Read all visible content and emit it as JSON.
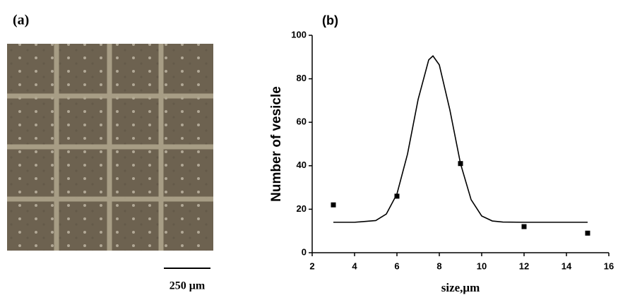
{
  "panel_a": {
    "label": "(a)",
    "scale_bar": "250 μm"
  },
  "chart_data": {
    "type": "scatter",
    "title": "(b)",
    "x_label": "size,μm",
    "y_label": "Number of vesicle",
    "xlim": [
      2,
      16
    ],
    "xticks": [
      2,
      4,
      6,
      8,
      10,
      12,
      14,
      16
    ],
    "ylim": [
      0,
      100
    ],
    "yticks": [
      0,
      20,
      40,
      60,
      80,
      100
    ],
    "series": [
      {
        "type": "scatter",
        "color": "#000000",
        "x": [
          3,
          6,
          9,
          12,
          15
        ],
        "values": [
          22,
          26,
          41,
          12,
          9
        ]
      },
      {
        "type": "line",
        "color": "#000000",
        "x": [
          3,
          4,
          5,
          5.5,
          6,
          6.5,
          7,
          7.5,
          7.7,
          8,
          8.5,
          9,
          9.5,
          10,
          10.5,
          11,
          12,
          13,
          14,
          15
        ],
        "values": [
          14,
          14,
          14.8,
          17.8,
          27,
          45.4,
          70.5,
          88.7,
          90.5,
          86.4,
          65.6,
          41,
          24.4,
          16.9,
          14.6,
          14.1,
          14,
          14,
          14,
          14
        ]
      }
    ]
  }
}
